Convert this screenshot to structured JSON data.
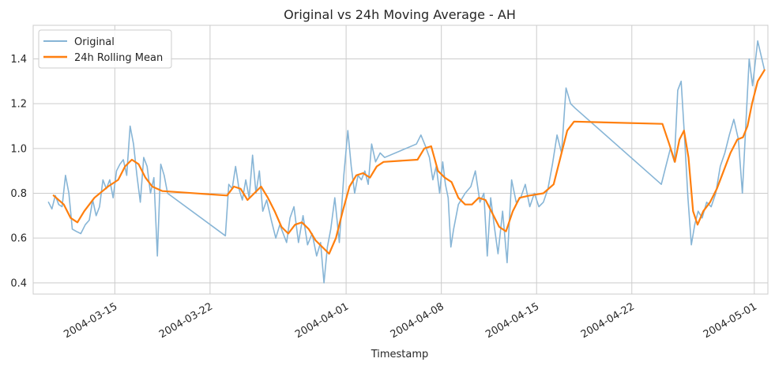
{
  "chart_data": {
    "type": "line",
    "title": "Original vs 24h Moving Average - AH",
    "xlabel": "Timestamp",
    "ylabel": "",
    "xlim": [
      "2004-03-09",
      "2004-05-02"
    ],
    "ylim": [
      0.35,
      1.55
    ],
    "x_ticks": [
      "2004-03-15",
      "2004-03-22",
      "2004-04-01",
      "2004-04-08",
      "2004-04-15",
      "2004-04-22",
      "2004-05-01"
    ],
    "y_ticks": [
      0.4,
      0.6,
      0.8,
      1.0,
      1.2,
      1.4
    ],
    "y_tick_labels": [
      "0.4",
      "0.6",
      "0.8",
      "1.0",
      "1.2",
      "1.4"
    ],
    "grid": true,
    "legend_position": "top-left",
    "colors": {
      "original": "#87b5d6",
      "rolling": "#ff7f0e",
      "grid": "#cccccc",
      "frame": "#cccccc"
    },
    "series": [
      {
        "name": "Original",
        "points": [
          [
            "2004-03-10",
            0.76
          ],
          [
            "2004-03-10",
            0.73
          ],
          [
            "2004-03-10",
            0.79
          ],
          [
            "2004-03-10",
            0.75
          ],
          [
            "2004-03-11",
            0.74
          ],
          [
            "2004-03-11",
            0.88
          ],
          [
            "2004-03-11",
            0.8
          ],
          [
            "2004-03-11",
            0.64
          ],
          [
            "2004-03-12",
            0.63
          ],
          [
            "2004-03-12",
            0.62
          ],
          [
            "2004-03-12",
            0.66
          ],
          [
            "2004-03-13",
            0.68
          ],
          [
            "2004-03-13",
            0.77
          ],
          [
            "2004-03-13",
            0.7
          ],
          [
            "2004-03-13",
            0.74
          ],
          [
            "2004-03-14",
            0.86
          ],
          [
            "2004-03-14",
            0.82
          ],
          [
            "2004-03-14",
            0.86
          ],
          [
            "2004-03-14",
            0.78
          ],
          [
            "2004-03-15",
            0.9
          ],
          [
            "2004-03-15",
            0.93
          ],
          [
            "2004-03-15",
            0.95
          ],
          [
            "2004-03-15",
            0.88
          ],
          [
            "2004-03-16",
            1.1
          ],
          [
            "2004-03-16",
            1.02
          ],
          [
            "2004-03-16",
            0.88
          ],
          [
            "2004-03-16",
            0.76
          ],
          [
            "2004-03-17",
            0.96
          ],
          [
            "2004-03-17",
            0.92
          ],
          [
            "2004-03-17",
            0.8
          ],
          [
            "2004-03-17",
            0.87
          ],
          [
            "2004-03-18",
            0.52
          ],
          [
            "2004-03-18",
            0.93
          ],
          [
            "2004-03-18",
            0.88
          ],
          [
            "2004-03-18",
            0.8
          ],
          [
            "2004-03-23",
            0.61
          ],
          [
            "2004-03-23",
            0.84
          ],
          [
            "2004-03-23",
            0.82
          ],
          [
            "2004-03-23",
            0.92
          ],
          [
            "2004-03-24",
            0.82
          ],
          [
            "2004-03-24",
            0.77
          ],
          [
            "2004-03-24",
            0.86
          ],
          [
            "2004-03-24",
            0.78
          ],
          [
            "2004-03-25",
            0.97
          ],
          [
            "2004-03-25",
            0.8
          ],
          [
            "2004-03-25",
            0.9
          ],
          [
            "2004-03-25",
            0.72
          ],
          [
            "2004-03-26",
            0.77
          ],
          [
            "2004-03-26",
            0.68
          ],
          [
            "2004-03-26",
            0.6
          ],
          [
            "2004-03-27",
            0.66
          ],
          [
            "2004-03-27",
            0.62
          ],
          [
            "2004-03-27",
            0.58
          ],
          [
            "2004-03-27",
            0.69
          ],
          [
            "2004-03-28",
            0.74
          ],
          [
            "2004-03-28",
            0.58
          ],
          [
            "2004-03-28",
            0.7
          ],
          [
            "2004-03-29",
            0.57
          ],
          [
            "2004-03-29",
            0.62
          ],
          [
            "2004-03-29",
            0.52
          ],
          [
            "2004-03-30",
            0.58
          ],
          [
            "2004-03-30",
            0.4
          ],
          [
            "2004-03-30",
            0.56
          ],
          [
            "2004-03-30",
            0.64
          ],
          [
            "2004-03-31",
            0.78
          ],
          [
            "2004-03-31",
            0.58
          ],
          [
            "2004-03-31",
            0.88
          ],
          [
            "2004-04-01",
            1.08
          ],
          [
            "2004-04-01",
            0.92
          ],
          [
            "2004-04-01",
            0.8
          ],
          [
            "2004-04-01",
            0.88
          ],
          [
            "2004-04-02",
            0.86
          ],
          [
            "2004-04-02",
            0.9
          ],
          [
            "2004-04-02",
            0.84
          ],
          [
            "2004-04-02",
            1.02
          ],
          [
            "2004-04-03",
            0.94
          ],
          [
            "2004-04-03",
            0.98
          ],
          [
            "2004-04-03",
            0.96
          ],
          [
            "2004-04-06",
            1.02
          ],
          [
            "2004-04-06",
            1.06
          ],
          [
            "2004-04-06",
            1.01
          ],
          [
            "2004-04-07",
            0.96
          ],
          [
            "2004-04-07",
            0.86
          ],
          [
            "2004-04-07",
            0.92
          ],
          [
            "2004-04-07",
            0.8
          ],
          [
            "2004-04-08",
            0.94
          ],
          [
            "2004-04-08",
            0.84
          ],
          [
            "2004-04-08",
            0.78
          ],
          [
            "2004-04-08",
            0.56
          ],
          [
            "2004-04-08",
            0.64
          ],
          [
            "2004-04-09",
            0.75
          ],
          [
            "2004-04-09",
            0.8
          ],
          [
            "2004-04-10",
            0.83
          ],
          [
            "2004-04-10",
            0.9
          ],
          [
            "2004-04-10",
            0.76
          ],
          [
            "2004-04-11",
            0.8
          ],
          [
            "2004-04-11",
            0.52
          ],
          [
            "2004-04-11",
            0.78
          ],
          [
            "2004-04-11",
            0.66
          ],
          [
            "2004-04-12",
            0.53
          ],
          [
            "2004-04-12",
            0.72
          ],
          [
            "2004-04-12",
            0.49
          ],
          [
            "2004-04-13",
            0.86
          ],
          [
            "2004-04-13",
            0.76
          ],
          [
            "2004-04-13",
            0.78
          ],
          [
            "2004-04-14",
            0.84
          ],
          [
            "2004-04-14",
            0.74
          ],
          [
            "2004-04-14",
            0.8
          ],
          [
            "2004-04-15",
            0.74
          ],
          [
            "2004-04-15",
            0.76
          ],
          [
            "2004-04-15",
            0.82
          ],
          [
            "2004-04-16",
            0.93
          ],
          [
            "2004-04-16",
            1.06
          ],
          [
            "2004-04-16",
            0.98
          ],
          [
            "2004-04-17",
            1.27
          ],
          [
            "2004-04-17",
            1.2
          ],
          [
            "2004-04-17",
            1.18
          ],
          [
            "2004-04-24",
            0.84
          ],
          [
            "2004-04-24",
            0.92
          ],
          [
            "2004-04-24",
            1.0
          ],
          [
            "2004-04-25",
            0.94
          ],
          [
            "2004-04-25",
            1.26
          ],
          [
            "2004-04-25",
            1.3
          ],
          [
            "2004-04-25",
            1.05
          ],
          [
            "2004-04-26",
            0.78
          ],
          [
            "2004-04-26",
            0.57
          ],
          [
            "2004-04-26",
            0.66
          ],
          [
            "2004-04-26",
            0.72
          ],
          [
            "2004-04-27",
            0.69
          ],
          [
            "2004-04-27",
            0.76
          ],
          [
            "2004-04-27",
            0.74
          ],
          [
            "2004-04-28",
            0.8
          ],
          [
            "2004-04-28",
            0.92
          ],
          [
            "2004-04-28",
            0.98
          ],
          [
            "2004-04-29",
            1.06
          ],
          [
            "2004-04-29",
            1.13
          ],
          [
            "2004-04-29",
            1.04
          ],
          [
            "2004-04-30",
            0.8
          ],
          [
            "2004-04-30",
            1.1
          ],
          [
            "2004-04-30",
            1.4
          ],
          [
            "2004-04-30",
            1.28
          ],
          [
            "2004-05-01",
            1.48
          ],
          [
            "2004-05-01",
            1.35
          ]
        ]
      },
      {
        "name": "24h Rolling Mean",
        "points": [
          [
            "2004-03-10",
            0.79
          ],
          [
            "2004-03-11",
            0.75
          ],
          [
            "2004-03-11",
            0.69
          ],
          [
            "2004-03-12",
            0.67
          ],
          [
            "2004-03-12",
            0.72
          ],
          [
            "2004-03-13",
            0.78
          ],
          [
            "2004-03-14",
            0.83
          ],
          [
            "2004-03-15",
            0.86
          ],
          [
            "2004-03-15",
            0.92
          ],
          [
            "2004-03-16",
            0.95
          ],
          [
            "2004-03-16",
            0.93
          ],
          [
            "2004-03-17",
            0.87
          ],
          [
            "2004-03-17",
            0.83
          ],
          [
            "2004-03-18",
            0.81
          ],
          [
            "2004-03-23",
            0.79
          ],
          [
            "2004-03-23",
            0.83
          ],
          [
            "2004-03-24",
            0.82
          ],
          [
            "2004-03-24",
            0.77
          ],
          [
            "2004-03-25",
            0.8
          ],
          [
            "2004-03-25",
            0.83
          ],
          [
            "2004-03-26",
            0.78
          ],
          [
            "2004-03-26",
            0.72
          ],
          [
            "2004-03-27",
            0.65
          ],
          [
            "2004-03-27",
            0.62
          ],
          [
            "2004-03-28",
            0.66
          ],
          [
            "2004-03-28",
            0.67
          ],
          [
            "2004-03-29",
            0.64
          ],
          [
            "2004-03-29",
            0.59
          ],
          [
            "2004-03-30",
            0.56
          ],
          [
            "2004-03-30",
            0.53
          ],
          [
            "2004-03-31",
            0.6
          ],
          [
            "2004-03-31",
            0.72
          ],
          [
            "2004-04-01",
            0.83
          ],
          [
            "2004-04-01",
            0.88
          ],
          [
            "2004-04-02",
            0.89
          ],
          [
            "2004-04-02",
            0.87
          ],
          [
            "2004-04-03",
            0.92
          ],
          [
            "2004-04-03",
            0.94
          ],
          [
            "2004-04-06",
            0.95
          ],
          [
            "2004-04-06",
            1.0
          ],
          [
            "2004-04-07",
            1.01
          ],
          [
            "2004-04-07",
            0.9
          ],
          [
            "2004-04-08",
            0.87
          ],
          [
            "2004-04-08",
            0.85
          ],
          [
            "2004-04-09",
            0.78
          ],
          [
            "2004-04-09",
            0.75
          ],
          [
            "2004-04-10",
            0.75
          ],
          [
            "2004-04-10",
            0.78
          ],
          [
            "2004-04-11",
            0.77
          ],
          [
            "2004-04-11",
            0.71
          ],
          [
            "2004-04-12",
            0.65
          ],
          [
            "2004-04-12",
            0.63
          ],
          [
            "2004-04-13",
            0.72
          ],
          [
            "2004-04-13",
            0.78
          ],
          [
            "2004-04-14",
            0.79
          ],
          [
            "2004-04-15",
            0.8
          ],
          [
            "2004-04-16",
            0.84
          ],
          [
            "2004-04-16",
            0.96
          ],
          [
            "2004-04-17",
            1.08
          ],
          [
            "2004-04-17",
            1.12
          ],
          [
            "2004-04-24",
            1.11
          ],
          [
            "2004-04-24",
            1.02
          ],
          [
            "2004-04-25",
            0.94
          ],
          [
            "2004-04-25",
            1.04
          ],
          [
            "2004-04-25",
            1.08
          ],
          [
            "2004-04-26",
            0.96
          ],
          [
            "2004-04-26",
            0.72
          ],
          [
            "2004-04-26",
            0.66
          ],
          [
            "2004-04-27",
            0.72
          ],
          [
            "2004-04-27",
            0.76
          ],
          [
            "2004-04-28",
            0.82
          ],
          [
            "2004-04-28",
            0.9
          ],
          [
            "2004-04-29",
            0.98
          ],
          [
            "2004-04-29",
            1.04
          ],
          [
            "2004-04-30",
            1.05
          ],
          [
            "2004-04-30",
            1.1
          ],
          [
            "2004-04-30",
            1.2
          ],
          [
            "2004-05-01",
            1.3
          ],
          [
            "2004-05-01",
            1.35
          ]
        ]
      }
    ]
  }
}
